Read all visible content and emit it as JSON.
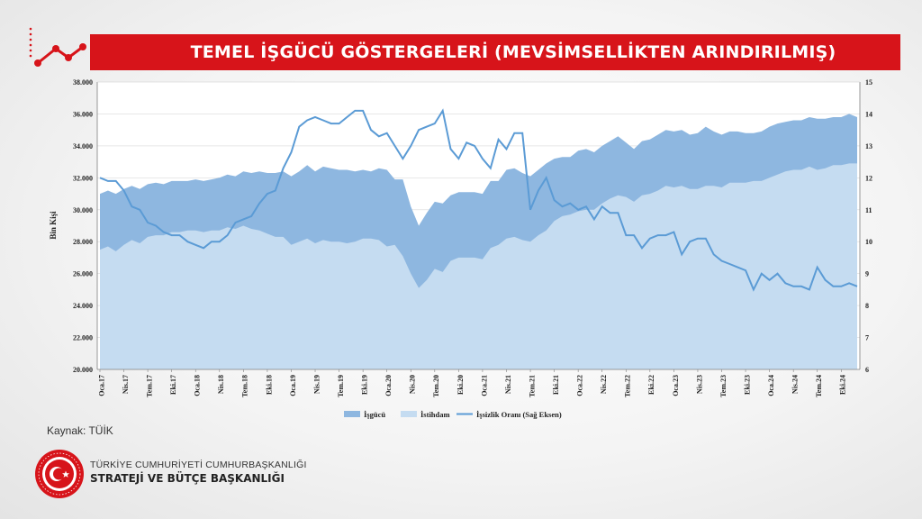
{
  "header": {
    "title": "TEMEL İŞGÜCÜ GÖSTERGELERİ (MEVSİMSELLİKTEN ARINDIRILMIŞ)",
    "brand_color": "#d7141a"
  },
  "source_text": "Kaynak: TÜİK",
  "footer": {
    "org_line1": "TÜRKİYE CUMHURİYETİ CUMHURBAŞKANLIĞI",
    "org_line2": "STRATEJİ VE BÜTÇE BAŞKANLIĞI",
    "seal_text": "T.C. CUMHURBAŞKANLIĞI STRATEJİ VE BÜTÇE BAŞKANLIĞI"
  },
  "icons": [
    "trend-chart-icon",
    "presidency-seal-icon"
  ],
  "chart_data": {
    "type": "area",
    "ylabel": "Bin Kişi",
    "ylim": [
      20000,
      38000
    ],
    "y_ticks": [
      "20.000",
      "22.000",
      "24.000",
      "26.000",
      "28.000",
      "30.000",
      "32.000",
      "34.000",
      "36.000",
      "38.000"
    ],
    "y2lim": [
      6,
      15
    ],
    "y2_ticks": [
      "6",
      "7",
      "8",
      "9",
      "10",
      "11",
      "12",
      "13",
      "14",
      "15"
    ],
    "grid": true,
    "legend_position": "bottom",
    "x_tick_labels": [
      "Oca.17",
      "Nis.17",
      "Tem.17",
      "Eki.17",
      "Oca.18",
      "Nis.18",
      "Tem.18",
      "Eki.18",
      "Oca.19",
      "Nis.19",
      "Tem.19",
      "Eki.19",
      "Oca.20",
      "Nis.20",
      "Tem.20",
      "Eki.20",
      "Oca.21",
      "Nis.21",
      "Tem.21",
      "Eki.21",
      "Oca.22",
      "Nis.22",
      "Tem.22",
      "Eki.22",
      "Oca.23",
      "Nis.23",
      "Tem.23",
      "Eki.23",
      "Oca.24",
      "Nis.24",
      "Tem.24",
      "Eki.24"
    ],
    "x_tick_every": 3,
    "series": [
      {
        "name": "İşgücü",
        "kind": "area",
        "color": "#8eb7e0",
        "values": [
          31000,
          31200,
          31000,
          31300,
          31500,
          31300,
          31600,
          31700,
          31600,
          31800,
          31800,
          31800,
          31900,
          31800,
          31900,
          32000,
          32200,
          32100,
          32400,
          32300,
          32400,
          32300,
          32300,
          32400,
          32100,
          32400,
          32800,
          32400,
          32700,
          32600,
          32500,
          32500,
          32400,
          32500,
          32400,
          32600,
          32500,
          31900,
          31900,
          30200,
          29000,
          29800,
          30500,
          30400,
          30900,
          31100,
          31100,
          31100,
          31000,
          31800,
          31800,
          32500,
          32600,
          32300,
          32100,
          32500,
          32900,
          33200,
          33300,
          33300,
          33700,
          33800,
          33600,
          34000,
          34300,
          34600,
          34200,
          33800,
          34300,
          34400,
          34700,
          35000,
          34900,
          35000,
          34700,
          34800,
          35200,
          34900,
          34700,
          34900,
          34900,
          34800,
          34800,
          34900,
          35200,
          35400,
          35500,
          35600,
          35600,
          35800,
          35700,
          35700,
          35800,
          35800,
          36000,
          35800
        ]
      },
      {
        "name": "İstihdam",
        "kind": "area",
        "color": "#c5dcf1",
        "values": [
          27500,
          27700,
          27400,
          27800,
          28100,
          27900,
          28300,
          28400,
          28400,
          28600,
          28600,
          28700,
          28700,
          28600,
          28700,
          28700,
          28900,
          28800,
          29000,
          28800,
          28700,
          28500,
          28300,
          28300,
          27800,
          28000,
          28200,
          27900,
          28100,
          28000,
          28000,
          27900,
          28000,
          28200,
          28200,
          28100,
          27700,
          27800,
          27100,
          26000,
          25100,
          25600,
          26300,
          26100,
          26800,
          27000,
          27000,
          27000,
          26900,
          27600,
          27800,
          28200,
          28300,
          28100,
          28000,
          28400,
          28700,
          29300,
          29600,
          29700,
          29900,
          30000,
          30000,
          30400,
          30700,
          30900,
          30800,
          30500,
          30900,
          31000,
          31200,
          31500,
          31400,
          31500,
          31300,
          31300,
          31500,
          31500,
          31400,
          31700,
          31700,
          31700,
          31800,
          31800,
          32000,
          32200,
          32400,
          32500,
          32500,
          32700,
          32500,
          32600,
          32800,
          32800,
          32900,
          32900
        ]
      },
      {
        "name": "İşsizlik Oranı (Sağ Eksen)",
        "kind": "line",
        "axis": "right",
        "color": "#5b9bd5",
        "values": [
          12.0,
          11.9,
          11.9,
          11.6,
          11.1,
          11.0,
          10.6,
          10.5,
          10.3,
          10.2,
          10.2,
          10.0,
          9.9,
          9.8,
          10.0,
          10.0,
          10.2,
          10.6,
          10.7,
          10.8,
          11.2,
          11.5,
          11.6,
          12.3,
          12.8,
          13.6,
          13.8,
          13.9,
          13.8,
          13.7,
          13.7,
          13.9,
          14.1,
          14.1,
          13.5,
          13.3,
          13.4,
          13.0,
          12.6,
          13.0,
          13.5,
          13.6,
          13.7,
          14.1,
          12.9,
          12.6,
          13.1,
          13.0,
          12.6,
          12.3,
          13.2,
          12.9,
          13.4,
          13.4,
          11.0,
          11.6,
          12.0,
          11.3,
          11.1,
          11.2,
          11.0,
          11.1,
          10.7,
          11.1,
          10.9,
          10.9,
          10.2,
          10.2,
          9.8,
          10.1,
          10.2,
          10.2,
          10.3,
          9.6,
          10.0,
          10.1,
          10.1,
          9.6,
          9.4,
          9.3,
          9.2,
          9.1,
          8.5,
          9.0,
          8.8,
          9.0,
          8.7,
          8.6,
          8.6,
          8.5,
          9.2,
          8.8,
          8.6,
          8.6,
          8.7,
          8.6
        ]
      }
    ]
  }
}
